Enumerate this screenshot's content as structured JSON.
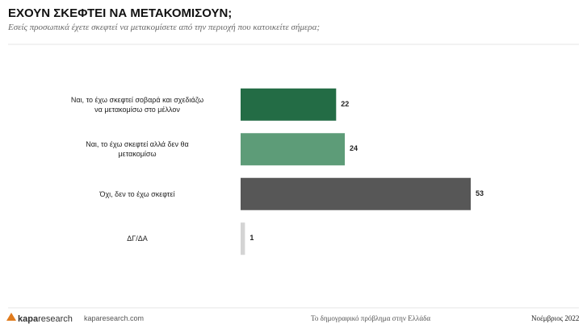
{
  "chart_data": {
    "type": "barh",
    "title": "ΕΧΟΥΝ ΣΚΕΦΤΕΙ ΝΑ ΜΕΤΑΚΟΜΙΣΟΥΝ;",
    "subtitle": "Εσείς προσωπικά έχετε σκεφτεί να μετακομίσετε από την περιοχή που κατοικείτε σήμερα;",
    "categories": [
      "Ναι, το έχω σκεφτεί σοβαρά και σχεδιάζω\nνα μετακομίσω στο μέλλον",
      "Ναι, το έχω σκεφτεί αλλά δεν θα\nμετακομίσω",
      "Όχι, δεν το έχω σκεφτεί",
      "ΔΓ/ΔΑ"
    ],
    "values": [
      22,
      24,
      53,
      1
    ],
    "colors": [
      "#236c45",
      "#5d9c78",
      "#575757",
      "#d4d4d4"
    ]
  },
  "footer": {
    "logo_bold": "kapa",
    "logo_light": "research",
    "site": "kaparesearch.com",
    "topic": "Το δημογραφικό πρόβλημα στην Ελλάδα",
    "date": "Νοέμβριος 2022"
  }
}
